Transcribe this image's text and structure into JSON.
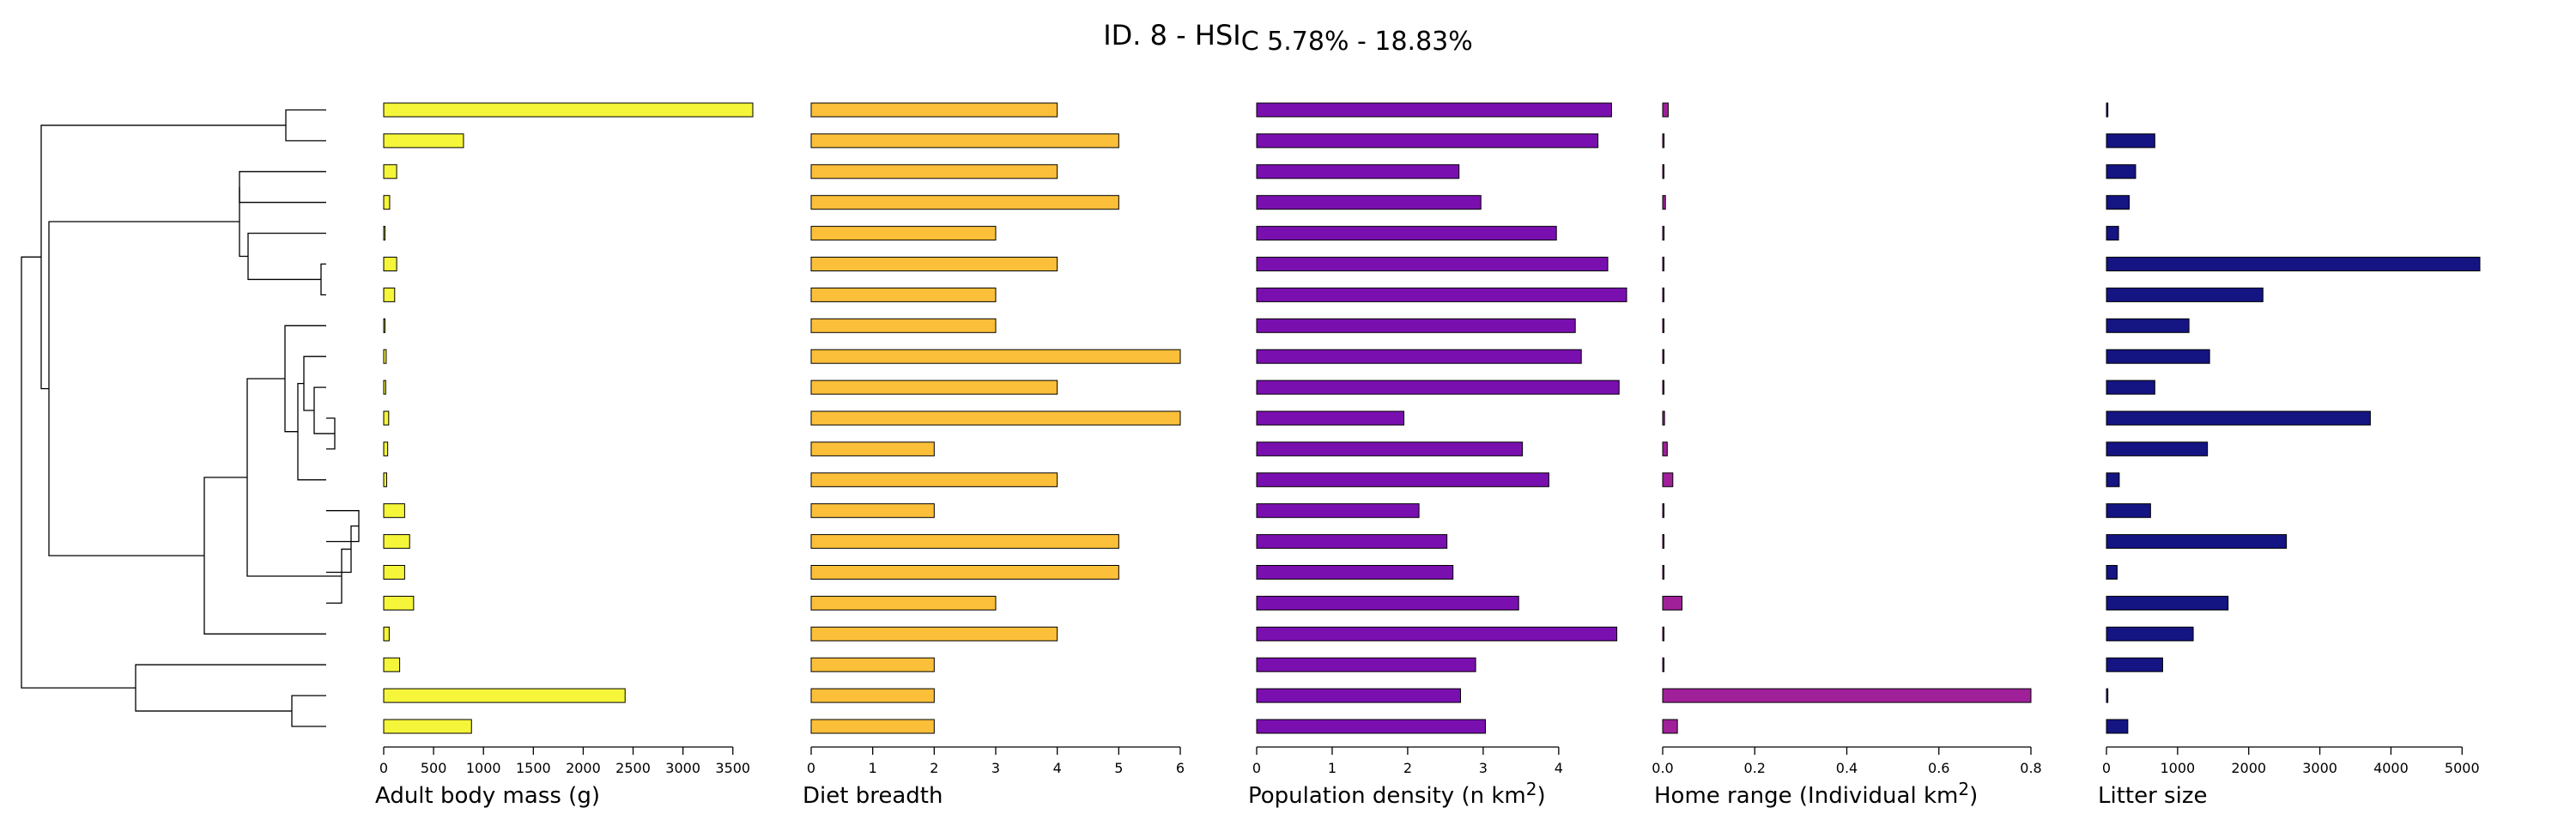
{
  "title": {
    "main": "ID. 8 - HSI",
    "sub": "C 5.78% - 18.83%"
  },
  "chart_data": [
    {
      "type": "bar",
      "orientation": "horizontal",
      "name": "adult-body-mass",
      "xlabel": "Adult body mass (g)",
      "xlim": [
        0,
        3700
      ],
      "ticks": [
        0,
        500,
        1000,
        1500,
        2000,
        2500,
        3000,
        3500
      ],
      "tick_labels": [
        "0",
        "500",
        "1000",
        "1500",
        "2000",
        "2500",
        "3000",
        "3500"
      ],
      "color": "#f5f53a",
      "values": [
        3700,
        800,
        130,
        60,
        12,
        130,
        110,
        10,
        25,
        20,
        50,
        40,
        30,
        210,
        260,
        210,
        300,
        55,
        160,
        2420,
        880
      ]
    },
    {
      "type": "bar",
      "orientation": "horizontal",
      "name": "diet-breadth",
      "xlabel": "Diet breadth",
      "xlim": [
        0,
        6
      ],
      "ticks": [
        0,
        1,
        2,
        3,
        4,
        5,
        6
      ],
      "tick_labels": [
        "0",
        "1",
        "2",
        "3",
        "4",
        "5",
        "6"
      ],
      "color": "#fbbf3a",
      "values": [
        4,
        5,
        4,
        5,
        3,
        4,
        3,
        3,
        6,
        4,
        6,
        2,
        4,
        2,
        5,
        5,
        3,
        4,
        2,
        2,
        2
      ]
    },
    {
      "type": "bar",
      "orientation": "horizontal",
      "name": "population-density",
      "xlabel": "Population density (n km",
      "xlabel_sup": "2",
      "xlabel_end": ")",
      "xlim": [
        0,
        4.9
      ],
      "ticks": [
        0,
        1,
        2,
        3,
        4
      ],
      "tick_labels": [
        "0",
        "1",
        "2",
        "3",
        "4"
      ],
      "color": "#7a0fb0",
      "values": [
        4.7,
        4.52,
        2.68,
        2.97,
        3.97,
        4.65,
        4.9,
        4.22,
        4.3,
        4.8,
        1.95,
        3.52,
        3.87,
        2.15,
        2.52,
        2.6,
        3.47,
        4.77,
        2.9,
        2.7,
        3.03
      ]
    },
    {
      "type": "bar",
      "orientation": "horizontal",
      "name": "home-range",
      "xlabel": "Home range (Individual km",
      "xlabel_sup": "2",
      "xlabel_end": ")",
      "xlim": [
        0,
        0.8
      ],
      "ticks": [
        0,
        0.2,
        0.4,
        0.6,
        0.8
      ],
      "tick_labels": [
        "0.0",
        "0.2",
        "0.4",
        "0.6",
        "0.8"
      ],
      "color": "#a0209a",
      "values": [
        0.012,
        0.003,
        0.002,
        0.006,
        0.003,
        0.002,
        0.002,
        0.002,
        0.002,
        0.002,
        0.004,
        0.01,
        0.022,
        0.002,
        0.002,
        0.002,
        0.042,
        0.002,
        0.002,
        0.8,
        0.032
      ]
    },
    {
      "type": "bar",
      "orientation": "horizontal",
      "name": "litter-size",
      "xlabel": "Litter size",
      "xlim": [
        0,
        5250
      ],
      "ticks": [
        0,
        1000,
        2000,
        3000,
        4000,
        5000
      ],
      "tick_labels": [
        "0",
        "1000",
        "2000",
        "3000",
        "4000",
        "5000"
      ],
      "color": "#141482",
      "values": [
        20,
        680,
        410,
        320,
        170,
        5250,
        2200,
        1160,
        1450,
        680,
        3710,
        1420,
        180,
        620,
        2530,
        150,
        1710,
        1220,
        790,
        20,
        300
      ]
    }
  ]
}
